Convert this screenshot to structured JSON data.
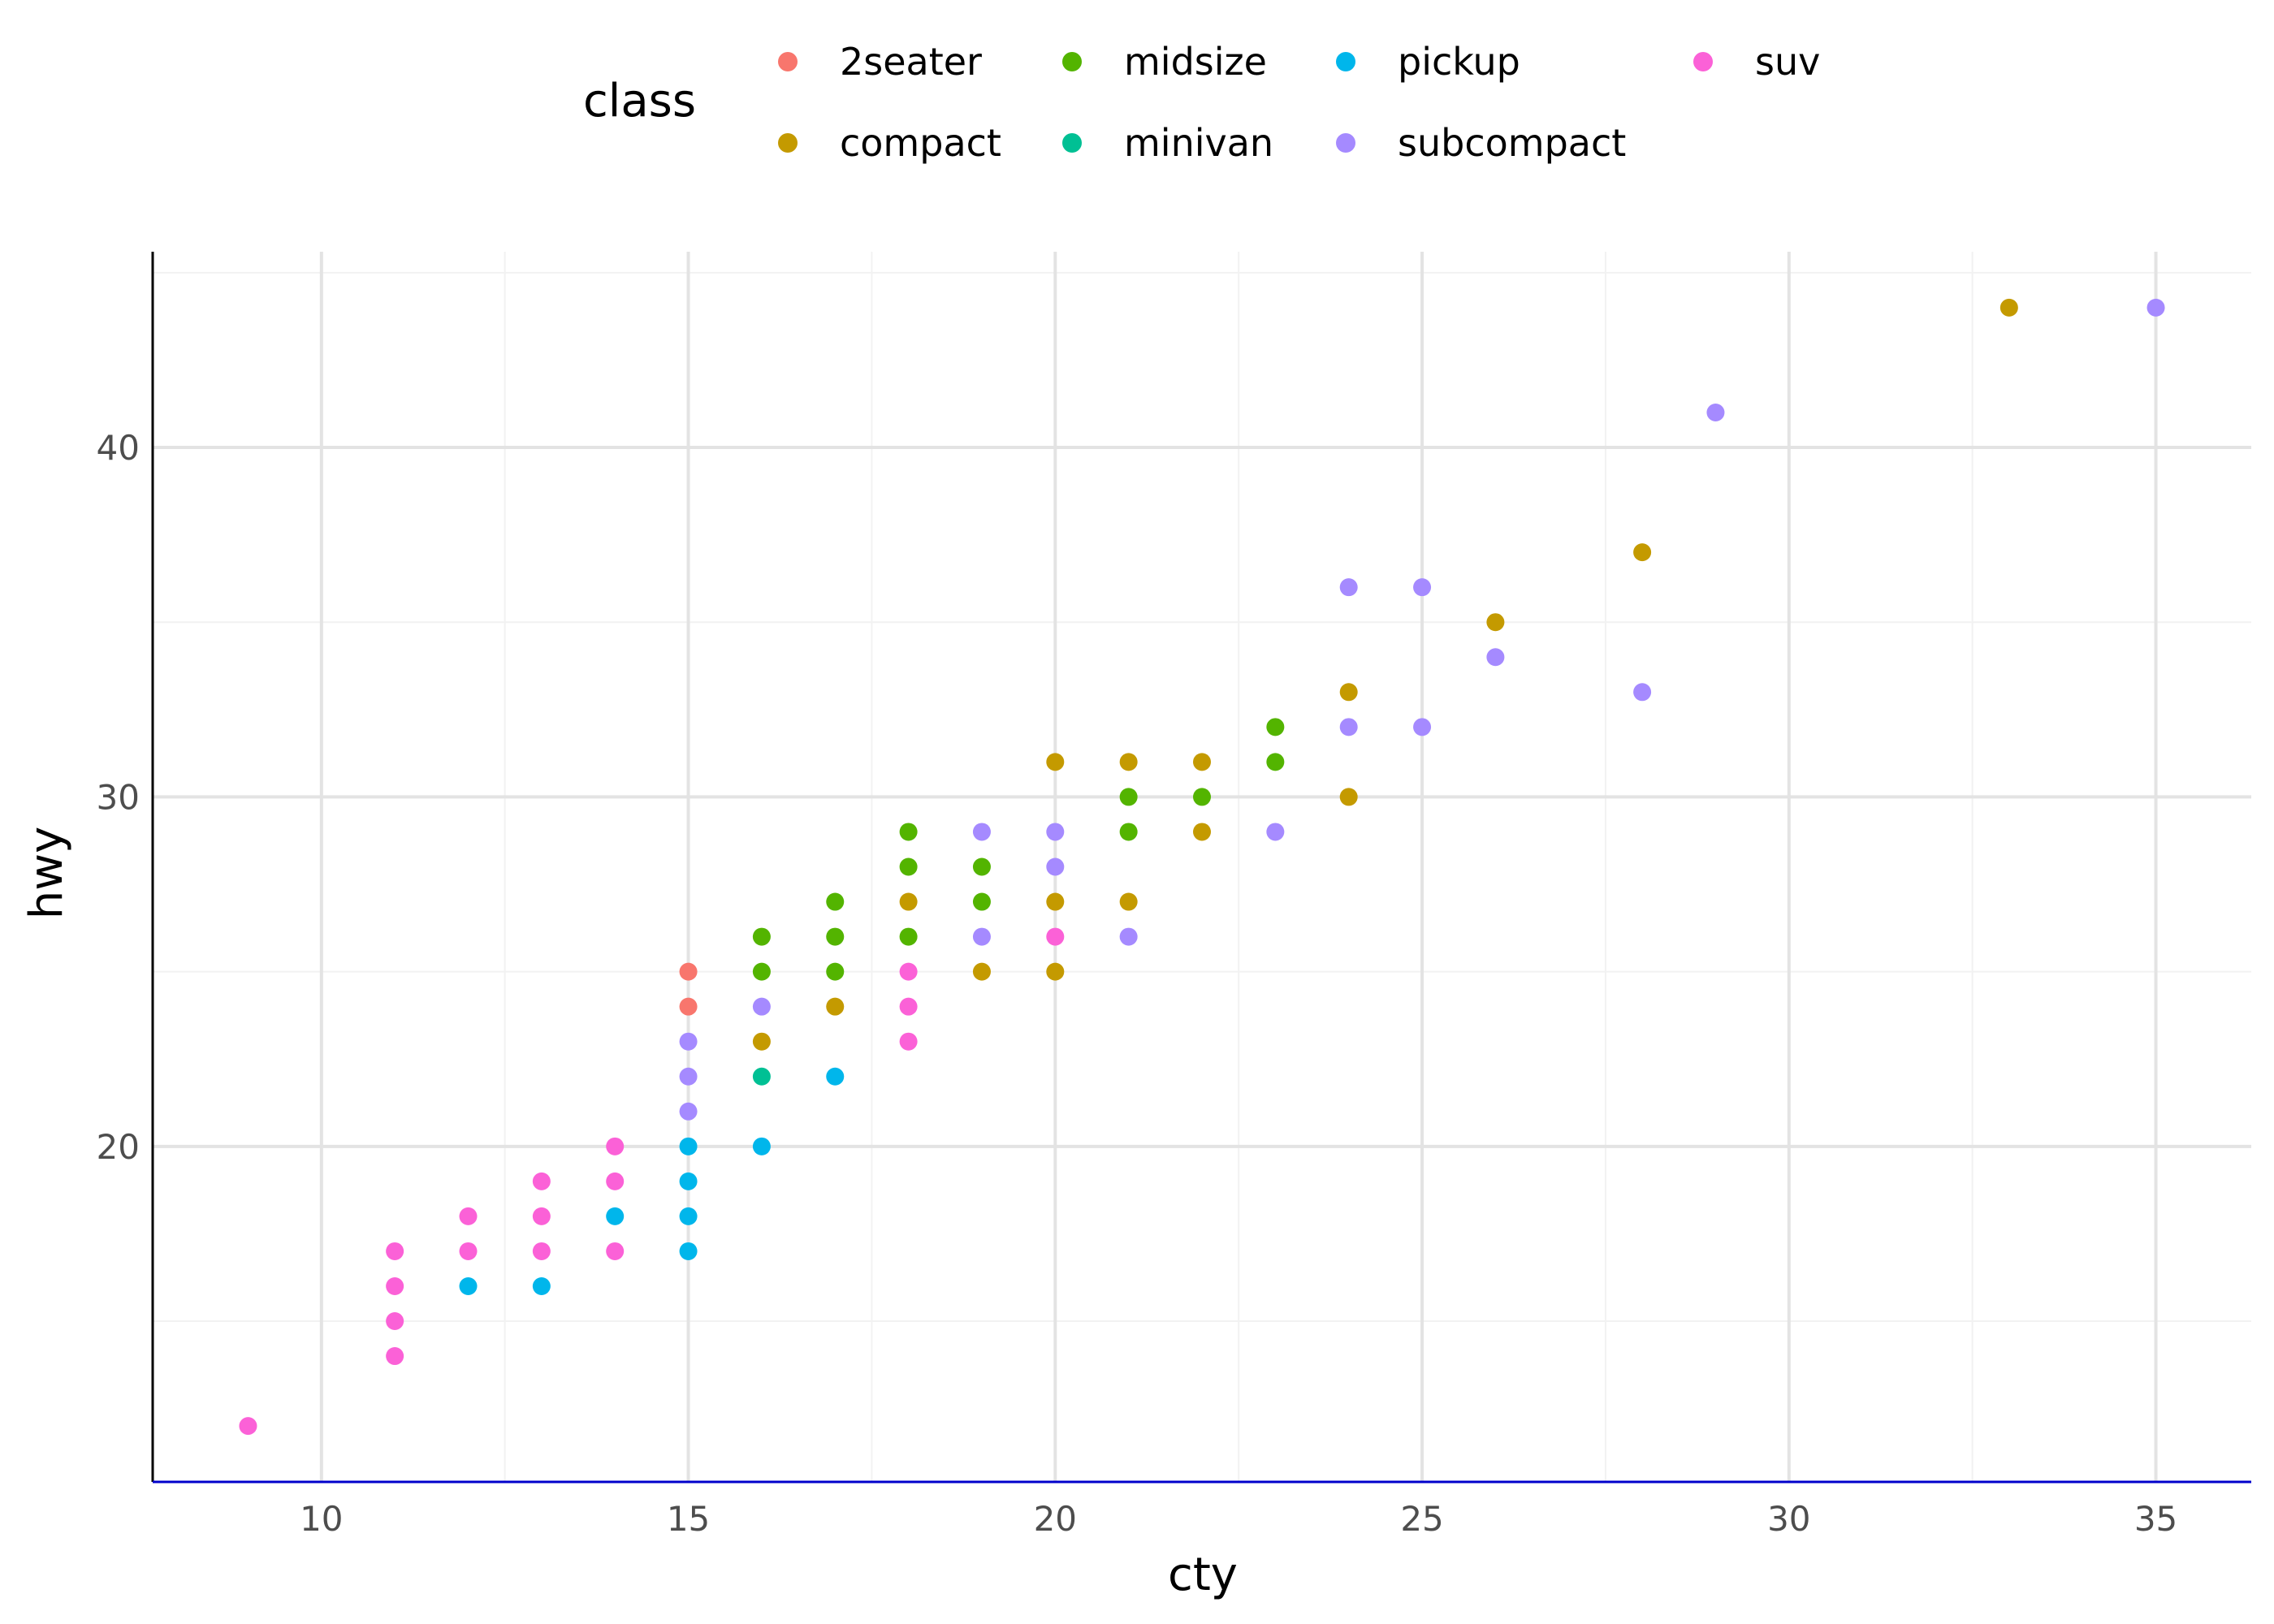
{
  "chart_data": {
    "type": "scatter",
    "title": "",
    "xlabel": "cty",
    "ylabel": "hwy",
    "xlim": [
      7.7,
      36.3
    ],
    "ylim": [
      10.4,
      45.6
    ],
    "x_ticks": [
      10,
      15,
      20,
      25,
      30,
      35
    ],
    "y_ticks": [
      20,
      30,
      40
    ],
    "grid": true,
    "legend": {
      "title": "class",
      "placement": "top"
    },
    "series": [
      {
        "name": "2seater",
        "color": "#F8766D",
        "points": [
          [
            15,
            25
          ],
          [
            15,
            24
          ]
        ]
      },
      {
        "name": "compact",
        "color": "#C49A00",
        "points": [
          [
            33,
            44
          ],
          [
            28,
            37
          ],
          [
            26,
            35
          ],
          [
            24,
            33
          ],
          [
            24,
            30
          ],
          [
            22,
            31
          ],
          [
            22,
            29
          ],
          [
            21,
            31
          ],
          [
            21,
            27
          ],
          [
            20,
            31
          ],
          [
            20,
            27
          ],
          [
            20,
            25
          ],
          [
            19,
            25
          ],
          [
            18,
            27
          ],
          [
            17,
            24
          ],
          [
            16,
            23
          ]
        ]
      },
      {
        "name": "midsize",
        "color": "#53B400",
        "points": [
          [
            23,
            32
          ],
          [
            23,
            31
          ],
          [
            22,
            30
          ],
          [
            21,
            30
          ],
          [
            21,
            29
          ],
          [
            19,
            28
          ],
          [
            19,
            27
          ],
          [
            18,
            29
          ],
          [
            18,
            28
          ],
          [
            18,
            26
          ],
          [
            17,
            27
          ],
          [
            17,
            26
          ],
          [
            17,
            25
          ],
          [
            16,
            26
          ],
          [
            16,
            25
          ]
        ]
      },
      {
        "name": "minivan",
        "color": "#00C094",
        "points": [
          [
            16,
            22
          ]
        ]
      },
      {
        "name": "pickup",
        "color": "#00B6EB",
        "points": [
          [
            17,
            22
          ],
          [
            16,
            20
          ],
          [
            15,
            20
          ],
          [
            15,
            19
          ],
          [
            15,
            18
          ],
          [
            15,
            17
          ],
          [
            14,
            18
          ],
          [
            13,
            16
          ],
          [
            12,
            16
          ]
        ]
      },
      {
        "name": "subcompact",
        "color": "#A58AFF",
        "points": [
          [
            35,
            44
          ],
          [
            29,
            41
          ],
          [
            28,
            33
          ],
          [
            26,
            34
          ],
          [
            25,
            36
          ],
          [
            25,
            32
          ],
          [
            24,
            36
          ],
          [
            24,
            32
          ],
          [
            23,
            29
          ],
          [
            21,
            26
          ],
          [
            20,
            29
          ],
          [
            20,
            28
          ],
          [
            19,
            29
          ],
          [
            19,
            26
          ],
          [
            16,
            24
          ],
          [
            15,
            23
          ],
          [
            15,
            22
          ],
          [
            15,
            21
          ]
        ]
      },
      {
        "name": "suv",
        "color": "#FB61D7",
        "points": [
          [
            20,
            26
          ],
          [
            18,
            25
          ],
          [
            18,
            24
          ],
          [
            18,
            23
          ],
          [
            14,
            20
          ],
          [
            14,
            19
          ],
          [
            14,
            17
          ],
          [
            13,
            19
          ],
          [
            13,
            18
          ],
          [
            13,
            17
          ],
          [
            12,
            18
          ],
          [
            12,
            17
          ],
          [
            11,
            17
          ],
          [
            11,
            16
          ],
          [
            11,
            15
          ],
          [
            11,
            14
          ],
          [
            9,
            12
          ]
        ]
      }
    ]
  }
}
